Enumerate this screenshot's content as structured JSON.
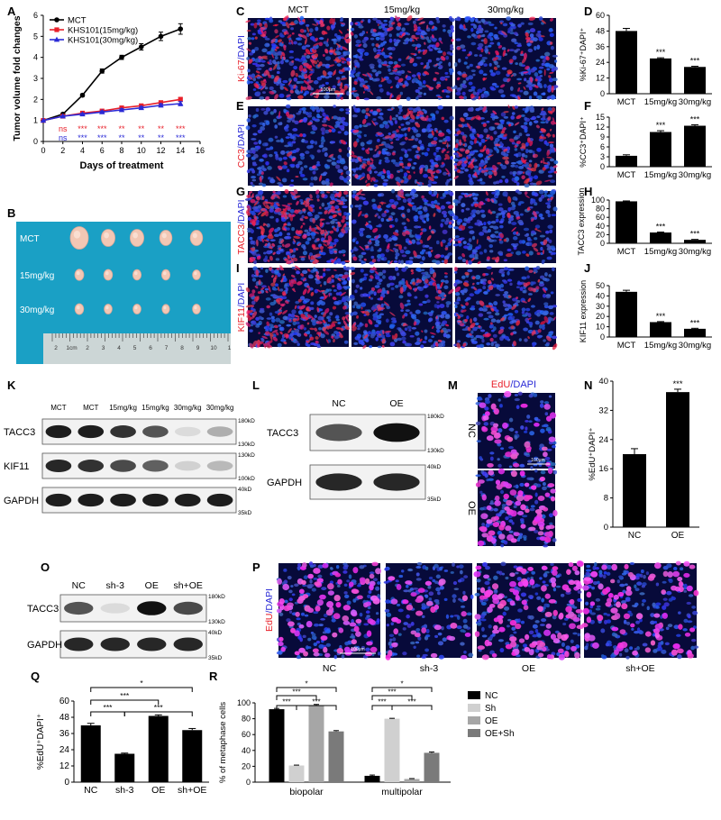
{
  "panels": {
    "A": "A",
    "B": "B",
    "C": "C",
    "D": "D",
    "E": "E",
    "F": "F",
    "G": "G",
    "H": "H",
    "I": "I",
    "J": "J",
    "K": "K",
    "L": "L",
    "M": "M",
    "N": "N",
    "O": "O",
    "P": "P",
    "Q": "Q",
    "R": "R"
  },
  "chart_data": [
    {
      "id": "A",
      "type": "line",
      "xlabel": "Days of treatment",
      "ylabel": "Tumor volume fold changes",
      "xlim": [
        0,
        16
      ],
      "ylim": [
        0,
        6
      ],
      "xticks": [
        "0",
        "2",
        "4",
        "6",
        "8",
        "10",
        "12",
        "14",
        "16"
      ],
      "yticks": [
        "0",
        "1",
        "2",
        "3",
        "4",
        "5",
        "6"
      ],
      "legend_position": "top-left",
      "series": [
        {
          "name": "MCT",
          "color": "#000000",
          "marker": "circle",
          "x": [
            0,
            2,
            4,
            6,
            8,
            10,
            12,
            14
          ],
          "y": [
            1.0,
            1.3,
            2.2,
            3.35,
            4.0,
            4.5,
            5.0,
            5.35
          ],
          "err": [
            0,
            0.03,
            0.06,
            0.1,
            0.1,
            0.15,
            0.2,
            0.25
          ]
        },
        {
          "name": "KHS101(15mg/kg)",
          "color": "#e8202a",
          "marker": "square",
          "x": [
            0,
            2,
            4,
            6,
            8,
            10,
            12,
            14
          ],
          "y": [
            1.0,
            1.2,
            1.35,
            1.45,
            1.6,
            1.7,
            1.85,
            2.0
          ],
          "err": [
            0,
            0.03,
            0.04,
            0.05,
            0.06,
            0.07,
            0.08,
            0.1
          ]
        },
        {
          "name": "KHS101(30mg/kg)",
          "color": "#2a2ad6",
          "marker": "triangle",
          "x": [
            0,
            2,
            4,
            6,
            8,
            10,
            12,
            14
          ],
          "y": [
            1.0,
            1.2,
            1.3,
            1.4,
            1.5,
            1.6,
            1.72,
            1.8
          ],
          "err": [
            0,
            0.03,
            0.04,
            0.05,
            0.06,
            0.07,
            0.08,
            0.1
          ]
        }
      ],
      "sig_rows": [
        {
          "color": "#e8202a",
          "labels": [
            "ns",
            "***",
            "***",
            "**",
            "**",
            "**",
            "***"
          ]
        },
        {
          "color": "#2a2ad6",
          "labels": [
            "ns",
            "***",
            "***",
            "**",
            "**",
            "**",
            "***"
          ]
        }
      ]
    },
    {
      "id": "D",
      "type": "bar",
      "ylabel": "%Ki-67⁺DAPI⁺",
      "categories": [
        "MCT",
        "15mg/kg",
        "30mg/kg"
      ],
      "values": [
        48,
        27,
        20.5
      ],
      "err": [
        2,
        0.5,
        0.5
      ],
      "ylim": [
        0,
        60
      ],
      "yticks": [
        "0",
        "12",
        "24",
        "36",
        "48",
        "60"
      ],
      "sig": [
        "",
        "***",
        "***"
      ]
    },
    {
      "id": "F",
      "type": "bar",
      "ylabel": "%CC3⁺DAPI⁺",
      "categories": [
        "MCT",
        "15mg/kg",
        "30mg/kg"
      ],
      "values": [
        3.3,
        10.5,
        12.4
      ],
      "err": [
        0.3,
        0.4,
        0.3
      ],
      "ylim": [
        0,
        15
      ],
      "yticks": [
        "0",
        "3",
        "6",
        "9",
        "12",
        "15"
      ],
      "sig": [
        "",
        "***",
        "***"
      ]
    },
    {
      "id": "H",
      "type": "bar",
      "ylabel": "TACC3 expression",
      "categories": [
        "MCT",
        "15mg/kg",
        "30mg/kg"
      ],
      "values": [
        97,
        25,
        8
      ],
      "err": [
        1,
        1,
        1
      ],
      "ylim": [
        0,
        100
      ],
      "yticks": [
        "0",
        "20",
        "40",
        "60",
        "80",
        "100"
      ],
      "sig": [
        "",
        "***",
        "***"
      ]
    },
    {
      "id": "J",
      "type": "bar",
      "ylabel": "KIF11 expression",
      "categories": [
        "MCT",
        "15mg/kg",
        "30mg/kg"
      ],
      "values": [
        44,
        14.5,
        8
      ],
      "err": [
        1.5,
        0.5,
        0.5
      ],
      "ylim": [
        0,
        50
      ],
      "yticks": [
        "0",
        "10",
        "20",
        "30",
        "40",
        "50"
      ],
      "sig": [
        "",
        "***",
        "***"
      ]
    },
    {
      "id": "N",
      "type": "bar",
      "ylabel": "%EdU⁺DAPI⁺",
      "categories": [
        "NC",
        "OE"
      ],
      "values": [
        20,
        37
      ],
      "err": [
        1.5,
        0.8
      ],
      "ylim": [
        0,
        40
      ],
      "yticks": [
        "0",
        "8",
        "16",
        "24",
        "32",
        "40"
      ],
      "sig": [
        "",
        "***"
      ]
    },
    {
      "id": "Q",
      "type": "bar",
      "ylabel": "%EdU⁺DAPI⁺",
      "categories": [
        "NC",
        "sh-3",
        "OE",
        "sh+OE"
      ],
      "values": [
        42,
        21,
        49,
        38.5
      ],
      "err": [
        1.5,
        0.5,
        0.8,
        1.2
      ],
      "ylim": [
        0,
        60
      ],
      "yticks": [
        "0",
        "12",
        "24",
        "36",
        "48",
        "60"
      ],
      "brackets": [
        {
          "from": 0,
          "to": 3,
          "label": "*"
        },
        {
          "from": 0,
          "to": 2,
          "label": "***"
        },
        {
          "from": 0,
          "to": 1,
          "label": "***"
        },
        {
          "from": 1,
          "to": 3,
          "label": "***"
        }
      ]
    },
    {
      "id": "R",
      "type": "bar",
      "ylabel": "% of metaphase cells",
      "categories": [
        "biopolar",
        "multipolar"
      ],
      "ylim": [
        0,
        100
      ],
      "yticks": [
        "0",
        "20",
        "40",
        "60",
        "80",
        "100"
      ],
      "legend_position": "right",
      "series": [
        {
          "name": "NC",
          "color": "#000000",
          "values": [
            92,
            8
          ],
          "err": [
            1,
            1
          ]
        },
        {
          "name": "Sh",
          "color": "#d0d0d0",
          "values": [
            21,
            80
          ],
          "err": [
            0.5,
            0.5
          ]
        },
        {
          "name": "OE",
          "color": "#a6a6a6",
          "values": [
            97,
            4
          ],
          "err": [
            1,
            0.5
          ]
        },
        {
          "name": "OE+Sh",
          "color": "#7a7a7a",
          "values": [
            64,
            37
          ],
          "err": [
            1,
            1
          ]
        }
      ],
      "brackets": [
        {
          "group": 0,
          "from": 0,
          "to": 3,
          "label": "*"
        },
        {
          "group": 0,
          "from": 0,
          "to": 2,
          "label": "***"
        },
        {
          "group": 0,
          "from": 0,
          "to": 1,
          "label": "***"
        },
        {
          "group": 0,
          "from": 1,
          "to": 3,
          "label": "***"
        },
        {
          "group": 1,
          "from": 0,
          "to": 3,
          "label": "*"
        },
        {
          "group": 1,
          "from": 0,
          "to": 2,
          "label": "***"
        },
        {
          "group": 1,
          "from": 0,
          "to": 1,
          "label": "***"
        },
        {
          "group": 1,
          "from": 1,
          "to": 3,
          "label": "***"
        }
      ]
    }
  ],
  "micrographs": {
    "col_labels": [
      "MCT",
      "15mg/kg",
      "30mg/kg"
    ],
    "rows": [
      {
        "label": "Ki-67/DAPI",
        "marker": "Ki-67",
        "counterstain": "DAPI",
        "intensity": [
          0.75,
          0.35,
          0.25
        ],
        "scale_bar": "100μm"
      },
      {
        "label": "CC3/DAPI",
        "marker": "CC3",
        "counterstain": "DAPI",
        "intensity": [
          0.12,
          0.4,
          0.5
        ]
      },
      {
        "label": "TACC3/DAPI",
        "marker": "TACC3",
        "counterstain": "DAPI",
        "intensity": [
          0.9,
          0.28,
          0.22
        ]
      },
      {
        "label": "KIF11/DAPI",
        "marker": "KIF11",
        "counterstain": "DAPI",
        "intensity": [
          0.7,
          0.3,
          0.28
        ]
      }
    ],
    "M": {
      "title_marker": "EdU",
      "title_rest": "/DAPI",
      "rows": [
        "NC",
        "OE"
      ],
      "scale_bar": "100μm",
      "density": [
        0.45,
        0.95
      ]
    },
    "P": {
      "side_marker": "EdU",
      "side_rest": "/DAPI",
      "cols": [
        "NC",
        "sh-3",
        "OE",
        "sh+OE"
      ],
      "scale_bar": "100μm",
      "density": [
        0.7,
        0.3,
        0.85,
        0.55
      ]
    }
  },
  "tumor_photo": {
    "rows": [
      "MCT",
      "15mg/kg",
      "30mg/kg"
    ],
    "ruler_labels": [
      "2",
      "1cm",
      "2",
      "3",
      "4",
      "5",
      "6",
      "7",
      "8",
      "9",
      "10",
      "1"
    ],
    "sizes": [
      [
        1.25,
        0.95,
        0.95,
        0.85,
        0.85
      ],
      [
        0.62,
        0.6,
        0.58,
        0.58,
        0.55
      ],
      [
        0.6,
        0.55,
        0.55,
        0.52,
        0.55
      ]
    ]
  },
  "blots": {
    "K": {
      "lanes": [
        "MCT",
        "MCT",
        "15mg/kg",
        "15mg/kg",
        "30mg/kg",
        "30mg/kg"
      ],
      "rows": [
        {
          "label": "TACC3",
          "mw_top": "180kD",
          "mw_bottom": "130kD",
          "intensity": [
            0.95,
            0.95,
            0.85,
            0.7,
            0.1,
            0.3
          ]
        },
        {
          "label": "KIF11",
          "mw_top": "130kD",
          "mw_bottom": "100kD",
          "intensity": [
            0.9,
            0.85,
            0.75,
            0.65,
            0.15,
            0.25
          ]
        },
        {
          "label": "GAPDH",
          "mw_top": "40kD",
          "mw_bottom": "35kD",
          "intensity": [
            0.95,
            0.95,
            0.95,
            0.95,
            0.95,
            0.95
          ]
        }
      ]
    },
    "L": {
      "lanes": [
        "NC",
        "OE"
      ],
      "rows": [
        {
          "label": "TACC3",
          "mw_top": "180kD",
          "mw_bottom": "130kD",
          "intensity": [
            0.7,
            1.0
          ]
        },
        {
          "label": "GAPDH",
          "mw_top": "40kD",
          "mw_bottom": "35kD",
          "intensity": [
            0.9,
            0.9
          ]
        }
      ]
    },
    "O": {
      "lanes": [
        "NC",
        "sh-3",
        "OE",
        "sh+OE"
      ],
      "rows": [
        {
          "label": "TACC3",
          "mw_top": "180kD",
          "mw_bottom": "130kD",
          "intensity": [
            0.7,
            0.1,
            1.0,
            0.75
          ]
        },
        {
          "label": "GAPDH",
          "mw_top": "40kD",
          "mw_bottom": "35kD",
          "intensity": [
            0.9,
            0.9,
            0.9,
            0.9
          ]
        }
      ]
    }
  }
}
